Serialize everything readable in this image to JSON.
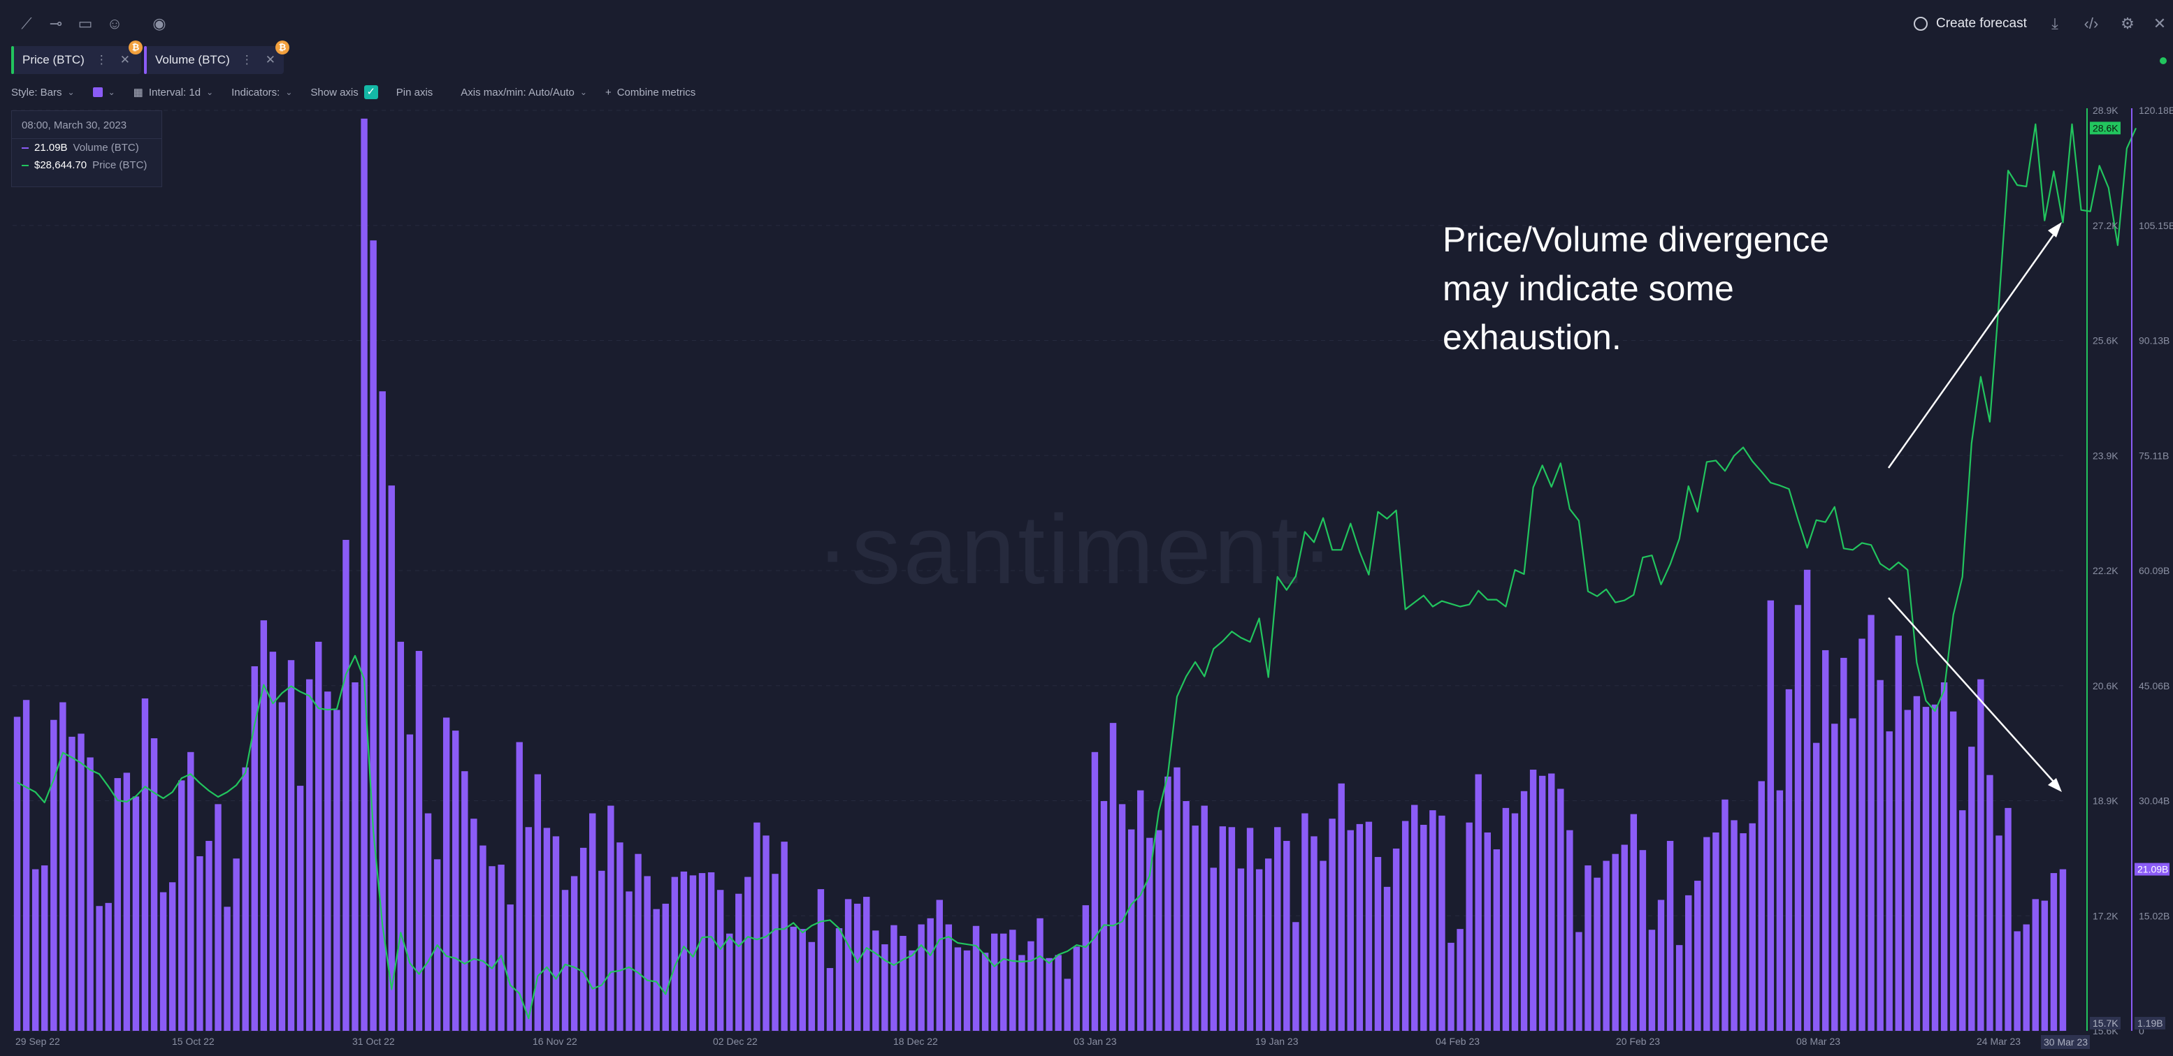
{
  "toolbar_top": {
    "create_forecast": "Create forecast"
  },
  "tabs": [
    {
      "label": "Price (BTC)",
      "color": "#22c55e",
      "badge": "₿"
    },
    {
      "label": "Volume (BTC)",
      "color": "#8b5cf6",
      "badge": "₿"
    }
  ],
  "controls": {
    "style": "Style: Bars",
    "interval": "Interval: 1d",
    "indicators": "Indicators:",
    "show_axis": "Show axis",
    "pin_axis": "Pin axis",
    "axis_minmax": "Axis max/min: Auto/Auto",
    "combine": "Combine metrics"
  },
  "legend": {
    "date": "08:00, March 30, 2023",
    "volume_value": "21.09B",
    "volume_name": "Volume (BTC)",
    "price_value": "$28,644.70",
    "price_name": "Price (BTC)"
  },
  "annotation": {
    "line1": "Price/Volume divergence",
    "line2": "may indicate some",
    "line3": "exhaustion."
  },
  "watermark": "·santiment·",
  "colors": {
    "price": "#22c55e",
    "volume": "#8b5cf6",
    "background": "#1a1d2e"
  },
  "chart_data": {
    "type": "bar",
    "x_start": "2022-09-26",
    "x_end": "2023-03-30",
    "x_ticks": [
      "29 Sep 22",
      "15 Oct 22",
      "31 Oct 22",
      "16 Nov 22",
      "02 Dec 22",
      "18 Dec 22",
      "03 Jan 23",
      "19 Jan 23",
      "04 Feb 23",
      "20 Feb 23",
      "08 Mar 23",
      "24 Mar 23"
    ],
    "x_last_label": "30 Mar 23",
    "price_axis": {
      "ticks": [
        "28.9K",
        "27.2K",
        "25.6K",
        "23.9K",
        "22.2K",
        "20.6K",
        "18.9K",
        "17.2K",
        "15.6K"
      ],
      "current_label": "28.6K",
      "min_label": "15.7K",
      "ylim": [
        15600,
        28900
      ]
    },
    "volume_axis": {
      "ticks": [
        "120.18B",
        "105.15B",
        "90.13B",
        "75.11B",
        "60.09B",
        "45.06B",
        "30.04B",
        "15.02B",
        "0"
      ],
      "current_label": "21.09B",
      "min_label": "1.19B",
      "ylim": [
        0,
        120.18
      ]
    },
    "series": [
      {
        "name": "Volume (BTC)",
        "type": "bar",
        "values": [
          41.0,
          43.2,
          21.1,
          21.6,
          40.6,
          42.9,
          38.4,
          38.8,
          35.7,
          16.3,
          16.7,
          33.0,
          33.7,
          30.6,
          43.4,
          38.2,
          18.1,
          19.4,
          32.7,
          36.4,
          22.8,
          24.8,
          29.6,
          16.2,
          22.5,
          34.4,
          47.6,
          53.6,
          49.5,
          42.9,
          48.4,
          32.0,
          45.9,
          50.8,
          44.3,
          41.9,
          64.1,
          45.5,
          119.1,
          103.2,
          83.5,
          71.2,
          50.8,
          38.7,
          49.6,
          28.4,
          22.4,
          40.9,
          39.2,
          33.9,
          27.7,
          24.2,
          21.5,
          21.7,
          16.5,
          37.7,
          26.6,
          33.5,
          26.5,
          25.4,
          18.4,
          20.2,
          23.9,
          28.4,
          20.9,
          29.4,
          24.6,
          18.2,
          23.1,
          20.2,
          15.9,
          16.6,
          20.1,
          20.8,
          20.3,
          20.6,
          20.7,
          18.4,
          12.7,
          17.9,
          20.1,
          27.2,
          25.5,
          20.5,
          24.7,
          13.6,
          13.3,
          11.6,
          18.5,
          8.2,
          13.4,
          17.2,
          16.6,
          17.5,
          13.1,
          11.3,
          13.8,
          12.4,
          10.5,
          13.9,
          14.7,
          17.1,
          13.9,
          10.9,
          10.5,
          13.7,
          10.2,
          12.7,
          12.7,
          13.2,
          9.9,
          11.7,
          14.7,
          9.5,
          9.9,
          6.8,
          11.0,
          16.4,
          36.4,
          30.0,
          40.2,
          29.6,
          26.3,
          31.4,
          25.2,
          26.2,
          33.2,
          34.4,
          30.0,
          26.8,
          29.4,
          21.3,
          26.7,
          26.6,
          21.2,
          26.5,
          21.1,
          22.5,
          26.6,
          24.8,
          14.2,
          28.4,
          25.4,
          22.2,
          27.7,
          32.3,
          26.2,
          27.0,
          27.3,
          22.7,
          18.8,
          23.8,
          27.4,
          29.5,
          26.9,
          28.8,
          28.1,
          11.5,
          13.3,
          27.2,
          33.5,
          25.9,
          23.7,
          29.1,
          28.4,
          31.3,
          34.1,
          33.3,
          33.6,
          31.6,
          26.2,
          12.9,
          21.6,
          20.0,
          22.2,
          23.1,
          24.3,
          28.3,
          23.6,
          13.2,
          17.1,
          24.8,
          11.2,
          17.7,
          19.6,
          25.3,
          25.9,
          30.2,
          27.5,
          25.8,
          27.1,
          32.6,
          56.2,
          31.4,
          44.6,
          55.6,
          60.2,
          37.6,
          49.7,
          40.1,
          48.7,
          40.8,
          51.2,
          54.3,
          45.8,
          39.1,
          51.6,
          41.9,
          43.7,
          42.3,
          42.6,
          45.5,
          41.7,
          28.8,
          37.1,
          45.9,
          33.4,
          25.5,
          29.1,
          13.0,
          13.9,
          17.2,
          17.0,
          20.6,
          21.1
        ]
      },
      {
        "name": "Price (BTC)",
        "type": "line",
        "values": [
          19190,
          19120,
          19050,
          18900,
          19230,
          19620,
          19550,
          19470,
          19370,
          19310,
          19130,
          18930,
          18910,
          18990,
          19130,
          19040,
          18960,
          19050,
          19250,
          19310,
          19180,
          19070,
          18980,
          19050,
          19150,
          19330,
          20030,
          20600,
          20330,
          20480,
          20580,
          20500,
          20440,
          20260,
          20240,
          20250,
          20750,
          21020,
          20680,
          18490,
          17130,
          16200,
          17020,
          16580,
          16420,
          16600,
          16840,
          16680,
          16650,
          16570,
          16640,
          16610,
          16500,
          16690,
          16260,
          16140,
          15780,
          16390,
          16520,
          16350,
          16560,
          16520,
          16450,
          16210,
          16260,
          16450,
          16470,
          16520,
          16440,
          16330,
          16310,
          16130,
          16530,
          16820,
          16670,
          16950,
          16960,
          16780,
          16960,
          16820,
          16960,
          16920,
          16960,
          17070,
          17070,
          17160,
          17020,
          17120,
          17180,
          17200,
          17080,
          16840,
          16590,
          16800,
          16720,
          16620,
          16550,
          16630,
          16690,
          16840,
          16690,
          16920,
          16960,
          16870,
          16850,
          16830,
          16690,
          16530,
          16640,
          16610,
          16600,
          16610,
          16680,
          16580,
          16700,
          16750,
          16840,
          16810,
          16950,
          17130,
          17120,
          17180,
          17430,
          17560,
          17840,
          18770,
          19300,
          20430,
          20720,
          20930,
          20720,
          21120,
          21230,
          21370,
          21280,
          21220,
          21560,
          20710,
          22160,
          21970,
          22170,
          22810,
          22660,
          23010,
          22550,
          22550,
          22930,
          22520,
          22190,
          23100,
          23000,
          23120,
          21690,
          21790,
          21890,
          21730,
          21810,
          21770,
          21730,
          21760,
          21960,
          21830,
          21830,
          21730,
          22260,
          22200,
          23450,
          23770,
          23460,
          23800,
          23140,
          22970,
          21950,
          21880,
          21980,
          21790,
          21820,
          21900,
          22440,
          22470,
          22050,
          22340,
          22710,
          23470,
          23100,
          23820,
          23840,
          23690,
          23910,
          24030,
          23830,
          23680,
          23520,
          23480,
          23430,
          22990,
          22580,
          22980,
          22950,
          23170,
          22570,
          22550,
          22650,
          22620,
          22350,
          22260,
          22370,
          22260,
          20920,
          20370,
          20220,
          20520,
          21610,
          22160,
          24090,
          25050,
          24400,
          26130,
          28030,
          27820,
          27800,
          28700,
          27310,
          28020,
          27280,
          28700,
          27460,
          27440,
          28100,
          27780,
          26950,
          28350,
          28644
        ]
      }
    ]
  }
}
